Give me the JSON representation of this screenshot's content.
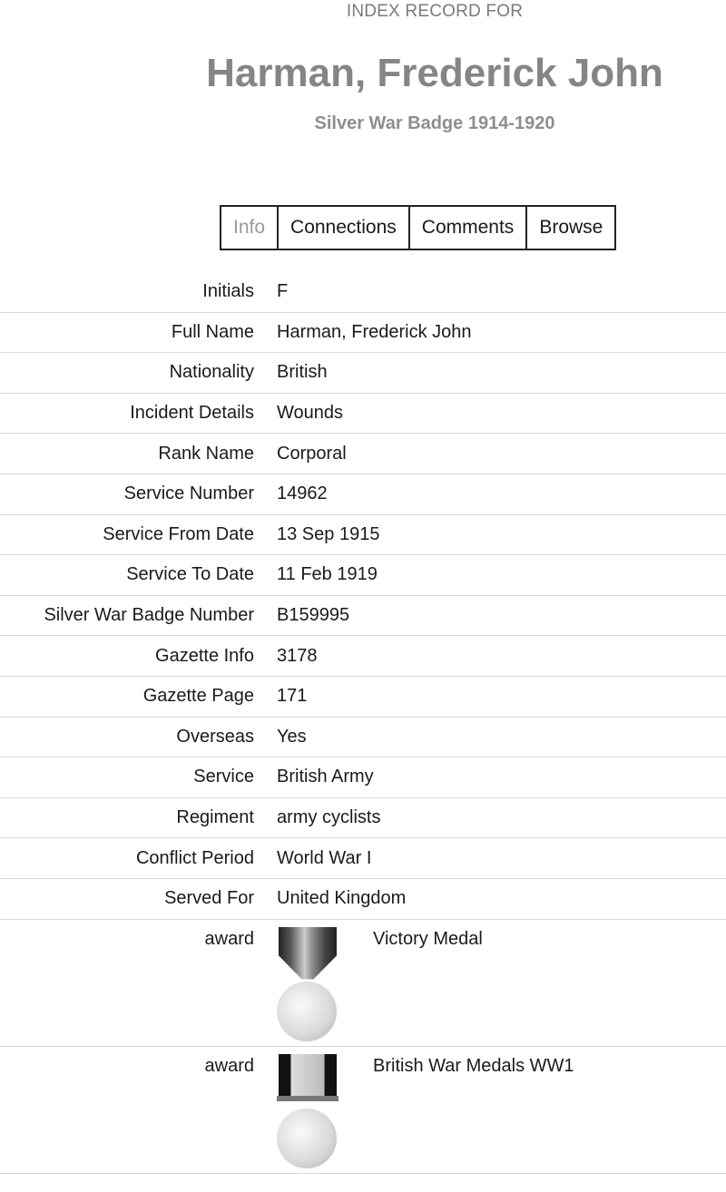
{
  "header": {
    "kicker": "INDEX RECORD FOR",
    "title": "Harman, Frederick John",
    "subtitle": "Silver War Badge 1914-1920"
  },
  "tabs": [
    {
      "label": "Info",
      "active": true
    },
    {
      "label": "Connections"
    },
    {
      "label": "Comments"
    },
    {
      "label": "Browse"
    }
  ],
  "fields": [
    {
      "label": "Initials",
      "value": "F"
    },
    {
      "label": "Full Name",
      "value": "Harman, Frederick John"
    },
    {
      "label": "Nationality",
      "value": "British"
    },
    {
      "label": "Incident Details",
      "value": "Wounds"
    },
    {
      "label": "Rank Name",
      "value": "Corporal"
    },
    {
      "label": "Service Number",
      "value": "14962"
    },
    {
      "label": "Service From Date",
      "value": "13 Sep 1915"
    },
    {
      "label": "Service To Date",
      "value": "11 Feb 1919"
    },
    {
      "label": "Silver War Badge Number",
      "value": "B159995"
    },
    {
      "label": "Gazette Info",
      "value": "3178"
    },
    {
      "label": "Gazette Page",
      "value": "171"
    },
    {
      "label": "Overseas",
      "value": "Yes"
    },
    {
      "label": "Service",
      "value": "British Army"
    },
    {
      "label": "Regiment",
      "value": "army cyclists"
    },
    {
      "label": "Conflict Period",
      "value": "World War I"
    },
    {
      "label": "Served For",
      "value": "United Kingdom"
    }
  ],
  "awards": [
    {
      "label": "award",
      "name": "Victory Medal",
      "icon": "victory-medal-icon"
    },
    {
      "label": "award",
      "name": "British War Medals WW1",
      "icon": "british-war-medal-icon"
    }
  ]
}
